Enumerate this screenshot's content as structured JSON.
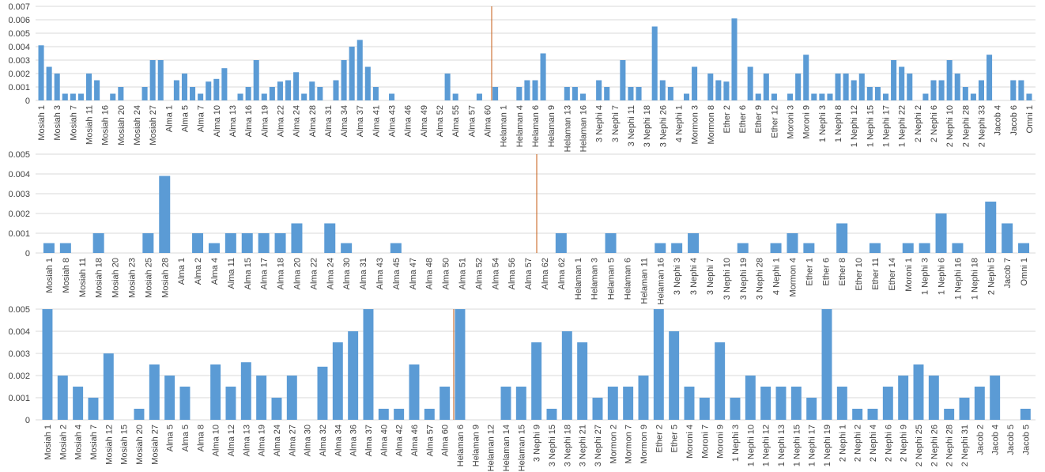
{
  "chart_data": [
    {
      "type": "bar",
      "color": "#5b9bd5",
      "grid": true,
      "ylim": [
        0,
        0.007
      ],
      "yticks": [
        0,
        0.001,
        0.002,
        0.003,
        0.004,
        0.005,
        0.006,
        0.007
      ],
      "categories": [
        "Mosiah 1",
        null,
        "Mosiah 3",
        null,
        "Mosiah 7",
        null,
        "Mosiah 11",
        null,
        "Mosiah 16",
        null,
        "Mosiah 20",
        null,
        "Mosiah 24",
        null,
        "Mosiah 27",
        null,
        "Alma 1",
        null,
        "Alma 5",
        null,
        "Alma 7",
        null,
        "Alma 10",
        null,
        "Alma 13",
        null,
        "Alma 16",
        null,
        "Alma 19",
        null,
        "Alma 22",
        null,
        "Alma 24",
        null,
        "Alma 28",
        null,
        "Alma 31",
        null,
        "Alma 34",
        null,
        "Alma 37",
        null,
        "Alma 41",
        null,
        "Alma 43",
        null,
        "Alma 46",
        null,
        "Alma 49",
        null,
        "Alma 52",
        null,
        "Alma 55",
        null,
        "Alma 57",
        null,
        "Alma 60",
        null,
        "Helaman 1",
        null,
        "Helaman 4",
        null,
        "Helaman 6",
        null,
        "Helaman 9",
        null,
        "Helaman 13",
        null,
        "Helaman 16",
        null,
        "3 Nephi 4",
        null,
        "3 Nephi 7",
        null,
        "3 Nephi 11",
        null,
        "3 Nephi 18",
        null,
        "3 Nephi 26",
        null,
        "4 Nephi 1",
        null,
        "Mormon 3",
        null,
        "Mormon 8",
        null,
        "Ether 2",
        null,
        "Ether 6",
        null,
        "Ether 9",
        null,
        "Ether 12",
        null,
        "Moroni 3",
        null,
        "Moroni 9",
        null,
        "1 Nephi 3",
        null,
        "1 Nephi 8",
        null,
        "1 Nephi 12",
        null,
        "1 Nephi 15",
        null,
        "1 Nephi 17",
        null,
        "1 Nephi 22",
        null,
        "2 Nephi 2",
        null,
        "2 Nephi 6",
        null,
        "2 Nephi 10",
        null,
        "2 Nephi 28",
        null,
        "2 Nephi 33",
        null,
        "Jacob 4",
        null,
        "Jacob 6",
        null,
        "Omni 1"
      ],
      "values": [
        0.0041,
        0.0025,
        0.002,
        0.0005,
        0.0005,
        0.0005,
        0.002,
        0.0015,
        0,
        0.0005,
        0.001,
        0,
        0,
        0.001,
        0.003,
        0.003,
        0,
        0.0015,
        0.002,
        0.001,
        0.0005,
        0.0014,
        0.0016,
        0.0024,
        0,
        0.0005,
        0.001,
        0.003,
        0.0005,
        0.001,
        0.0014,
        0.0015,
        0.0021,
        0.0005,
        0.0014,
        0.001,
        0,
        0.0015,
        0.003,
        0.004,
        0.0045,
        0.0025,
        0.001,
        0,
        0.0005,
        0,
        0,
        0,
        0,
        0,
        0,
        0.002,
        0.0005,
        0,
        0,
        0.0005,
        0,
        0.001,
        0,
        0,
        0.001,
        0.0015,
        0.0015,
        0.0035,
        0,
        0,
        0.001,
        0.001,
        0.0005,
        0,
        0.0015,
        0.001,
        0,
        0.003,
        0.001,
        0.001,
        0,
        0.0055,
        0.0015,
        0.001,
        0,
        0.0005,
        0.0025,
        0,
        0.002,
        0.0015,
        0.0014,
        0.0061,
        0,
        0.0025,
        0.0005,
        0.002,
        0.0005,
        0,
        0.0005,
        0.002,
        0.0034,
        0.0005,
        0.0005,
        0.0005,
        0.002,
        0.002,
        0.0015,
        0.002,
        0.001,
        0.001,
        0.0005,
        0.003,
        0.0025,
        0.002,
        0,
        0.0005,
        0.0015,
        0.0015,
        0.003,
        0.002,
        0.001,
        0.0005,
        0.0015,
        0.0034,
        0,
        0,
        0.0015,
        0.0015,
        0.0005
      ]
    },
    {
      "type": "bar",
      "color": "#5b9bd5",
      "grid": true,
      "ylim": [
        0,
        0.005
      ],
      "yticks": [
        0,
        0.001,
        0.002,
        0.003,
        0.004,
        0.005
      ],
      "categories": [
        "Mosiah 1",
        "Mosiah 8",
        "Mosiah 11",
        "Mosiah 18",
        "Mosiah 20",
        "Mosiah 23",
        "Mosiah 25",
        "Mosiah 28",
        "Alma 1",
        "Alma 2",
        "Alma 4",
        "Alma 11",
        "Alma 15",
        "Alma 17",
        "Alma 18",
        "Alma 20",
        "Alma 22",
        "Alma 24",
        "Alma 30",
        "Alma 31",
        "Alma 43",
        "Alma 45",
        "Alma 47",
        "Alma 48",
        "Alma 50",
        "Alma 51",
        "Alma 52",
        "Alma 54",
        "Alma 56",
        "Alma 57",
        "Alma 62",
        "Alma 62",
        "Helaman 1",
        "Helaman 3",
        "Helaman 5",
        "Helaman 6",
        "Helaman 11",
        "Helaman 16",
        "3 Nephi 3",
        "3 Nephi 4",
        "3 Nephi 7",
        "3 Nephi 10",
        "3 Nephi 19",
        "3 Nephi 28",
        "4 Nephi 1",
        "Mormon 4",
        "Ether 1",
        "Ether 6",
        "Ether 8",
        "Ether 10",
        "Ether 11",
        "Ether 14",
        "Moroni 1",
        "1 Nephi 3",
        "1 Nephi 6",
        "1 Nephi 16",
        "1 Nephi 18",
        "2 Nephi 5",
        "Jacob 7",
        "Omni 1"
      ],
      "values": [
        0.0005,
        0.0005,
        0,
        0.001,
        0,
        0,
        0.001,
        0.0039,
        0,
        0.001,
        0.0005,
        0.001,
        0.001,
        0.001,
        0.001,
        0.0015,
        0,
        0.0015,
        0.0005,
        0,
        0,
        0.0005,
        0,
        0,
        0,
        0,
        0,
        0,
        0,
        0,
        0,
        0.001,
        0,
        0,
        0.001,
        0,
        0,
        0.0005,
        0.0005,
        0.001,
        0,
        0,
        0.0005,
        0,
        0.0005,
        0.001,
        0.0005,
        0,
        0.0015,
        0,
        0.0005,
        0,
        0.0005,
        0.0005,
        0.002,
        0.0005,
        0,
        0.0026,
        0.0015,
        0.0005
      ]
    },
    {
      "type": "bar",
      "color": "#5b9bd5",
      "grid": true,
      "ylim": [
        0,
        0.005
      ],
      "yticks": [
        0,
        0.001,
        0.002,
        0.003,
        0.004,
        0.005
      ],
      "categories": [
        "Mosiah 1",
        "Mosiah 2",
        "Mosiah 4",
        "Mosiah 7",
        "Mosiah 12",
        "Mosiah 15",
        "Mosiah 20",
        "Mosiah 27",
        "Alma 5",
        "Alma 5",
        "Alma 8",
        "Alma 10",
        "Alma 12",
        "Alma 13",
        "Alma 19",
        "Alma 24",
        "Alma 27",
        "Alma 30",
        "Alma 32",
        "Alma 34",
        "Alma 36",
        "Alma 37",
        "Alma 40",
        "Alma 42",
        "Alma 46",
        "Alma 57",
        "Alma 60",
        "Helaman 6",
        "Helaman 9",
        "Helaman 12",
        "Helaman 14",
        "Helaman 15",
        "3 Nephi 9",
        "3 Nephi 15",
        "3 Nephi 18",
        "3 Nephi 21",
        "3 Nephi 27",
        "Mormon 2",
        "Mormon 7",
        "Mormon 9",
        "Ether 2",
        "Ether 5",
        "Moroni 4",
        "Moroni 7",
        "Moroni 9",
        "1 Nephi 3",
        "1 Nephi 10",
        "1 Nephi 12",
        "1 Nephi 13",
        "1 Nephi 15",
        "1 Nephi 17",
        "1 Nephi 19",
        "2 Nephi 1",
        "2 Nephi 2",
        "2 Nephi 4",
        "2 Nephi 6",
        "2 Nephi 9",
        "2 Nephi 25",
        "2 Nephi 26",
        "2 Nephi 28",
        "2 Nephi 31",
        "Jacob 2",
        "Jacob 4",
        "Jacob 5",
        "Jacob 5"
      ],
      "values": [
        0.005,
        0.002,
        0.0015,
        0.001,
        0.003,
        0,
        0.0005,
        0.0025,
        0.002,
        0.0015,
        0,
        0.0025,
        0.0015,
        0.0026,
        0.002,
        0.001,
        0.002,
        0,
        0.0024,
        0.0035,
        0.004,
        0.005,
        0.0005,
        0.0005,
        0.0025,
        0.0005,
        0.0015,
        0.005,
        0,
        0,
        0.0015,
        0.0015,
        0.0035,
        0.0005,
        0.004,
        0.0035,
        0.001,
        0.0015,
        0.0015,
        0.002,
        0.005,
        0.004,
        0.0015,
        0.001,
        0.0035,
        0.001,
        0.002,
        0.0015,
        0.0015,
        0.0015,
        0.001,
        0.005,
        0.0015,
        0.0005,
        0.0005,
        0.0015,
        0.002,
        0.0025,
        0.002,
        0.0005,
        0.001,
        0.0015,
        0.002,
        0,
        0.0005
      ]
    }
  ]
}
